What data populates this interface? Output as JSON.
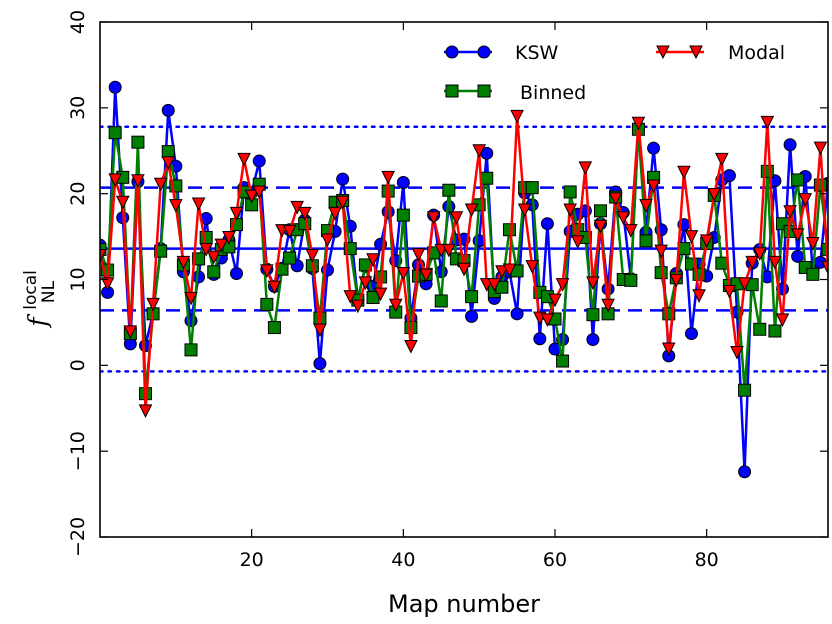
{
  "chart_data": {
    "type": "line",
    "title": "",
    "xlabel": "Map number",
    "ylabel": {
      "main": "f",
      "sup": "local",
      "sub": "NL"
    },
    "xlim": [
      0,
      96
    ],
    "ylim": [
      -20,
      40
    ],
    "xticks": [
      20,
      40,
      60,
      80
    ],
    "yticks": [
      -20,
      -10,
      0,
      10,
      20,
      30,
      40
    ],
    "xticklabels": [
      "20",
      "40",
      "60",
      "80"
    ],
    "yticklabels": [
      "−20",
      "−10",
      "0",
      "10",
      "20",
      "30",
      "40"
    ],
    "legend": {
      "placement": "top-right",
      "entries": [
        "KSW",
        "Modal",
        "Binned"
      ]
    },
    "reference_lines": [
      {
        "style": "solid",
        "y": 13.6,
        "color": "#0000ff"
      },
      {
        "style": "dashed",
        "y": 20.7,
        "color": "#0000ff"
      },
      {
        "style": "dashed",
        "y": 6.4,
        "color": "#0000ff"
      },
      {
        "style": "dotted",
        "y": 27.8,
        "color": "#0000ff"
      },
      {
        "style": "dotted",
        "y": -0.7,
        "color": "#0000ff"
      }
    ],
    "x": [
      0,
      1,
      2,
      3,
      4,
      5,
      6,
      7,
      8,
      9,
      10,
      11,
      12,
      13,
      14,
      15,
      16,
      17,
      18,
      19,
      20,
      21,
      22,
      23,
      24,
      25,
      26,
      27,
      28,
      29,
      30,
      31,
      32,
      33,
      34,
      35,
      36,
      37,
      38,
      39,
      40,
      41,
      42,
      43,
      44,
      45,
      46,
      47,
      48,
      49,
      50,
      51,
      52,
      53,
      54,
      55,
      56,
      57,
      58,
      59,
      60,
      61,
      62,
      63,
      64,
      65,
      66,
      67,
      68,
      69,
      70,
      71,
      72,
      73,
      74,
      75,
      76,
      77,
      78,
      79,
      80,
      81,
      82,
      83,
      84,
      85,
      86,
      87,
      88,
      89,
      90,
      91,
      92,
      93,
      94,
      95,
      96
    ],
    "series": [
      {
        "name": "KSW",
        "color": "#0000ff",
        "marker": "circle",
        "values": [
          14,
          8.5,
          32.4,
          17.2,
          2.5,
          21.4,
          2.3,
          6.1,
          13.6,
          29.7,
          23.2,
          10.9,
          5.2,
          10.3,
          17.1,
          10.6,
          12.5,
          14.6,
          10.7,
          20.7,
          20.1,
          23.8,
          11.2,
          9.2,
          11.3,
          15.8,
          11.6,
          16.9,
          11.3,
          0.2,
          11.1,
          15.6,
          21.7,
          16.2,
          7.7,
          11.5,
          9.2,
          14.1,
          17.9,
          12.2,
          21.3,
          5.5,
          11.7,
          9.5,
          17.5,
          10.9,
          18.5,
          14.6,
          14.7,
          5.7,
          14.5,
          24.7,
          7.8,
          10.3,
          10.9,
          6.0,
          20.1,
          18.7,
          3.1,
          16.5,
          1.9,
          3.0,
          15.6,
          17.6,
          18.0,
          3.0,
          16.5,
          8.9,
          20.2,
          17.8,
          10.1,
          27.7,
          15.5,
          25.3,
          15.8,
          1.1,
          10.7,
          16.4,
          3.7,
          11.8,
          10.4,
          14.9,
          21.6,
          22.1,
          6.2,
          -12.4,
          11.9,
          13.5,
          10.3,
          21.5,
          8.9,
          25.7,
          12.7,
          22.0,
          11.0,
          12.0,
          21.2
        ]
      },
      {
        "name": "Binned",
        "color": "#007f00",
        "marker": "square",
        "values": [
          13.5,
          11.1,
          27.1,
          21.9,
          3.7,
          26.0,
          -3.3,
          6.0,
          13.3,
          24.9,
          20.9,
          11.7,
          1.8,
          12.4,
          14.9,
          10.9,
          13.5,
          13.8,
          16.4,
          20.2,
          18.7,
          21.1,
          7.1,
          4.4,
          11.2,
          12.5,
          15.8,
          16.5,
          11.6,
          5.5,
          15.7,
          19.0,
          19.2,
          13.6,
          7.6,
          11.7,
          7.9,
          10.3,
          20.3,
          6.2,
          17.5,
          4.4,
          10.4,
          10.6,
          13.1,
          7.5,
          20.4,
          12.4,
          12.2,
          8.0,
          18.7,
          21.8,
          8.6,
          9.1,
          15.8,
          11.0,
          20.7,
          20.7,
          8.5,
          8.0,
          5.4,
          0.5,
          20.2,
          15.8,
          14.9,
          5.9,
          18.0,
          6.0,
          19.6,
          10.0,
          9.9,
          27.5,
          14.5,
          21.9,
          10.8,
          6.0,
          10.2,
          13.6,
          11.8,
          10.6,
          14.2,
          19.8,
          11.9,
          9.3,
          9.5,
          -2.9,
          9.4,
          4.2,
          22.6,
          4.0,
          16.5,
          15.6,
          21.6,
          11.4,
          10.6,
          21.0,
          13.5
        ]
      },
      {
        "name": "Modal",
        "color": "#ff0000",
        "marker": "triangle-down",
        "values": [
          12.8,
          9.5,
          21.6,
          19.0,
          3.9,
          21.5,
          -5.3,
          7.1,
          21.1,
          23.6,
          18.6,
          12.0,
          7.8,
          18.8,
          13.5,
          12.6,
          14.0,
          14.9,
          17.7,
          24.0,
          19.7,
          20.2,
          11.0,
          9.1,
          15.7,
          15.6,
          18.4,
          17.7,
          12.8,
          4.1,
          14.6,
          17.7,
          19.0,
          8.0,
          6.9,
          9.6,
          12.3,
          8.3,
          21.9,
          7.0,
          10.7,
          2.2,
          12.9,
          10.5,
          17.2,
          13.4,
          13.4,
          17.2,
          11.2,
          18.1,
          25.0,
          9.4,
          9.4,
          10.9,
          11.1,
          29.0,
          18.1,
          11.5,
          5.5,
          5.3,
          7.6,
          9.4,
          18.1,
          14.4,
          23.0,
          9.6,
          16.2,
          7.0,
          19.4,
          17.2,
          15.7,
          28.2,
          18.6,
          20.9,
          13.3,
          1.9,
          9.9,
          22.5,
          15.0,
          8.1,
          14.5,
          19.9,
          24.0,
          8.6,
          1.5,
          9.5,
          12.0,
          13.0,
          28.3,
          12.0,
          5.3,
          17.9,
          15.2,
          19.3,
          14.2,
          25.3,
          11.4
        ]
      }
    ]
  }
}
